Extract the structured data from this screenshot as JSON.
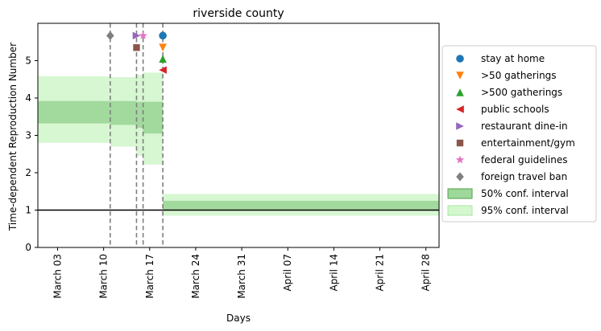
{
  "chart_data": {
    "type": "line",
    "title": "riverside county",
    "xlabel": "Days",
    "ylabel": "Time-dependent Reproduction Number",
    "xlim": [
      "2020-02-29",
      "2020-04-30"
    ],
    "ylim": [
      0,
      6
    ],
    "yticks": [
      0,
      1,
      2,
      3,
      4,
      5
    ],
    "xticks": [
      {
        "date": "2020-03-03",
        "label": "March 03"
      },
      {
        "date": "2020-03-10",
        "label": "March 10"
      },
      {
        "date": "2020-03-17",
        "label": "March 17"
      },
      {
        "date": "2020-03-24",
        "label": "March 24"
      },
      {
        "date": "2020-03-31",
        "label": "March 31"
      },
      {
        "date": "2020-04-07",
        "label": "April 07"
      },
      {
        "date": "2020-04-14",
        "label": "April 14"
      },
      {
        "date": "2020-04-21",
        "label": "April 21"
      },
      {
        "date": "2020-04-28",
        "label": "April 28"
      }
    ],
    "reference_line": {
      "y": 1
    },
    "intervals": [
      {
        "start": "2020-02-29",
        "end": "2020-03-11",
        "ci50": [
          3.32,
          3.92
        ],
        "ci95": [
          2.8,
          4.58
        ]
      },
      {
        "start": "2020-03-11",
        "end": "2020-03-15",
        "ci50": [
          3.28,
          3.92
        ],
        "ci95": [
          2.7,
          4.56
        ]
      },
      {
        "start": "2020-03-15",
        "end": "2020-03-16",
        "ci50": [
          3.2,
          3.9
        ],
        "ci95": [
          2.45,
          4.62
        ]
      },
      {
        "start": "2020-03-16",
        "end": "2020-03-19",
        "ci50": [
          3.05,
          3.9
        ],
        "ci95": [
          2.22,
          4.68
        ]
      },
      {
        "start": "2020-03-19",
        "end": "2020-04-30",
        "ci50": [
          1.02,
          1.25
        ],
        "ci95": [
          0.85,
          1.43
        ]
      }
    ],
    "interventions": [
      {
        "name": "stay at home",
        "date": "2020-03-19",
        "y": 5.67,
        "marker": "circle",
        "color": "#1f77b4"
      },
      {
        "name": ">50 gatherings",
        "date": "2020-03-19",
        "y": 5.35,
        "marker": "triangle-down",
        "color": "#ff7f0e"
      },
      {
        "name": ">500 gatherings",
        "date": "2020-03-19",
        "y": 5.05,
        "marker": "triangle-up",
        "color": "#2ca02c"
      },
      {
        "name": "public schools",
        "date": "2020-03-19",
        "y": 4.75,
        "marker": "triangle-left",
        "color": "#d62728"
      },
      {
        "name": "restaurant dine-in",
        "date": "2020-03-15",
        "y": 5.67,
        "marker": "triangle-right",
        "color": "#9467bd"
      },
      {
        "name": "entertainment/gym",
        "date": "2020-03-15",
        "y": 5.35,
        "marker": "square",
        "color": "#8c564b"
      },
      {
        "name": "federal guidelines",
        "date": "2020-03-16",
        "y": 5.67,
        "marker": "star",
        "color": "#e377c2"
      },
      {
        "name": "foreign travel ban",
        "date": "2020-03-11",
        "y": 5.67,
        "marker": "diamond",
        "color": "#7f7f7f"
      }
    ],
    "vlines": [
      "2020-03-11",
      "2020-03-15",
      "2020-03-16",
      "2020-03-19"
    ],
    "legend": {
      "placement": "right",
      "entries": [
        {
          "label": "stay at home",
          "kind": "marker",
          "marker": "circle",
          "color": "#1f77b4"
        },
        {
          "label": ">50 gatherings",
          "kind": "marker",
          "marker": "triangle-down",
          "color": "#ff7f0e"
        },
        {
          "label": ">500 gatherings",
          "kind": "marker",
          "marker": "triangle-up",
          "color": "#2ca02c"
        },
        {
          "label": "public schools",
          "kind": "marker",
          "marker": "triangle-left",
          "color": "#d62728"
        },
        {
          "label": "restaurant dine-in",
          "kind": "marker",
          "marker": "triangle-right",
          "color": "#9467bd"
        },
        {
          "label": "entertainment/gym",
          "kind": "marker",
          "marker": "square",
          "color": "#8c564b"
        },
        {
          "label": "federal guidelines",
          "kind": "marker",
          "marker": "star",
          "color": "#e377c2"
        },
        {
          "label": "foreign travel ban",
          "kind": "marker",
          "marker": "diamond",
          "color": "#7f7f7f"
        },
        {
          "label": "50% conf. interval",
          "kind": "patch",
          "color": "#9fd89b",
          "edge": "#4fa14a"
        },
        {
          "label": "95% conf. interval",
          "kind": "patch",
          "color": "#d4f7cf",
          "edge": "#a8e4a0"
        }
      ]
    },
    "colors": {
      "ci50": "#9fd89b",
      "ci95": "#d4f7cf",
      "vline": "#7f7f7f",
      "reference": "#000000"
    },
    "grid": false
  }
}
